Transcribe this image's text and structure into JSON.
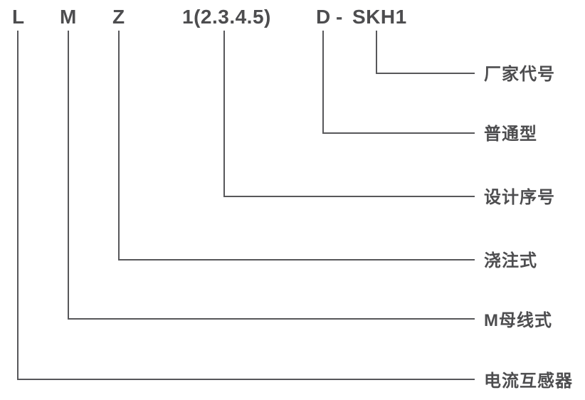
{
  "colors": {
    "ink": "#4d4d4f",
    "line": "#57575a",
    "background": "#ffffff"
  },
  "model_code": {
    "full": "LMZ1(2.3.4.5)D-SKH1",
    "parts": [
      {
        "text": "L"
      },
      {
        "text": "M"
      },
      {
        "text": "Z"
      },
      {
        "text": "1(2.3.4.5)"
      },
      {
        "text": "D"
      },
      {
        "text": "-"
      },
      {
        "text": "SKH1"
      }
    ]
  },
  "legend": {
    "rows": [
      {
        "code_part": "SKH1",
        "label": "厂家代号"
      },
      {
        "code_part": "D",
        "label": "普通型"
      },
      {
        "code_part": "1(2.3.4.5)",
        "label": "设计序号"
      },
      {
        "code_part": "Z",
        "label": "浇注式"
      },
      {
        "code_part": "M",
        "label": "M母线式"
      },
      {
        "code_part": "L",
        "label": "电流互感器"
      }
    ]
  }
}
